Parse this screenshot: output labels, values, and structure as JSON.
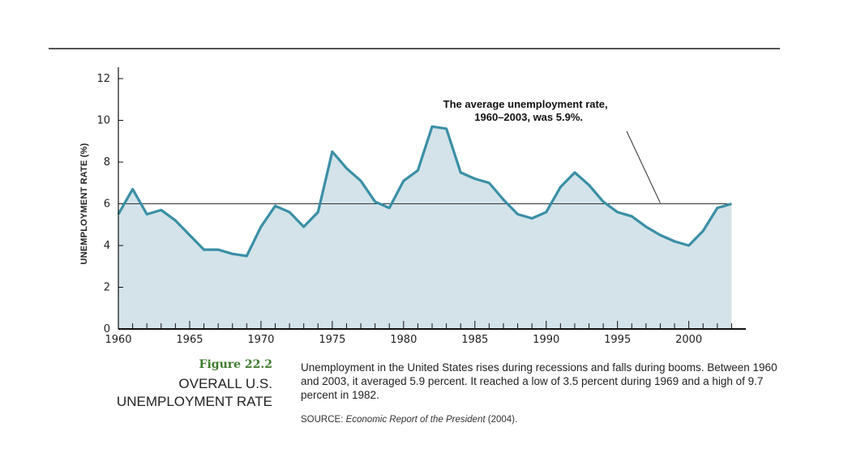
{
  "chart_data": {
    "type": "area",
    "ylabel": "UNEMPLOYMENT RATE (%)",
    "xlabel": "",
    "xlim": [
      1960,
      2004
    ],
    "ylim": [
      0,
      12
    ],
    "x_ticks": [
      1960,
      1965,
      1970,
      1975,
      1980,
      1985,
      1990,
      1995,
      2000
    ],
    "y_ticks": [
      0,
      2,
      4,
      6,
      8,
      10,
      12
    ],
    "grid": false,
    "series": [
      {
        "x": [
          1960,
          1961,
          1962,
          1963,
          1964,
          1965,
          1966,
          1967,
          1968,
          1969,
          1970,
          1971,
          1972,
          1973,
          1974,
          1975,
          1976,
          1977,
          1978,
          1979,
          1980,
          1981,
          1982,
          1983,
          1984,
          1985,
          1986,
          1987,
          1988,
          1989,
          1990,
          1991,
          1992,
          1993,
          1994,
          1995,
          1996,
          1997,
          1998,
          1999,
          2000,
          2001,
          2002,
          2003
        ],
        "values": [
          5.5,
          6.7,
          5.5,
          5.7,
          5.2,
          4.5,
          3.8,
          3.8,
          3.6,
          3.5,
          4.9,
          5.9,
          5.6,
          4.9,
          5.6,
          8.5,
          7.7,
          7.1,
          6.1,
          5.8,
          7.1,
          7.6,
          9.7,
          9.6,
          7.5,
          7.2,
          7.0,
          6.2,
          5.5,
          5.3,
          5.6,
          6.8,
          7.5,
          6.9,
          6.1,
          5.6,
          5.4,
          4.9,
          4.5,
          4.2,
          4.0,
          4.7,
          5.8,
          6.0
        ]
      }
    ],
    "average_line": 6.0,
    "annotation": [
      "The average unemployment rate,",
      "1960–2003, was 5.9%."
    ],
    "colors": {
      "line": "#3a8fa6",
      "fill": "#d3e3e9",
      "average": "#333333",
      "axis": "#111111"
    }
  },
  "figure": {
    "number": "Figure 22.2",
    "title_lines": [
      "OVERALL U.S.",
      "UNEMPLOYMENT RATE"
    ],
    "caption": "Unemployment in the United States rises during recessions and falls during booms. Between 1960 and 2003, it averaged 5.9 percent. It reached a low of 3.5 percent during 1969 and a high of 9.7 percent in 1982.",
    "source_prefix": "SOURCE: ",
    "source_title": "Economic Report of the President",
    "source_suffix": " (2004)."
  }
}
